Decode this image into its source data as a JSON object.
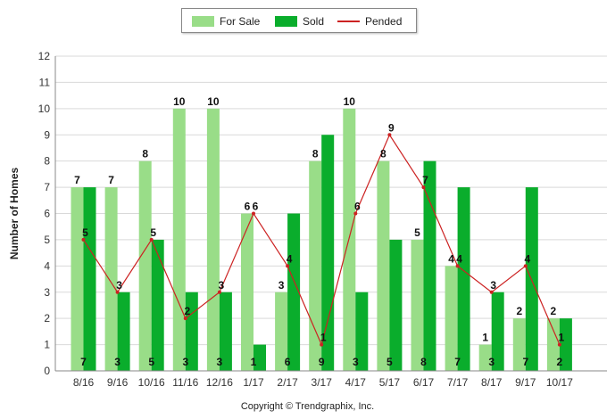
{
  "chart_data": {
    "type": "bar",
    "categories": [
      "8/16",
      "9/16",
      "10/16",
      "11/16",
      "12/16",
      "1/17",
      "2/17",
      "3/17",
      "4/17",
      "5/17",
      "6/17",
      "7/17",
      "8/17",
      "9/17",
      "10/17"
    ],
    "series": [
      {
        "name": "For Sale",
        "type": "bar",
        "color": "#99dd88",
        "values": [
          7,
          7,
          8,
          10,
          10,
          6,
          3,
          8,
          10,
          8,
          5,
          4,
          1,
          2,
          2
        ]
      },
      {
        "name": "Sold",
        "type": "bar",
        "color": "#0aad2c",
        "values": [
          7,
          3,
          5,
          3,
          3,
          1,
          6,
          9,
          3,
          5,
          8,
          7,
          3,
          7,
          2
        ]
      },
      {
        "name": "Pended",
        "type": "line",
        "color": "#cc2222",
        "values": [
          5,
          3,
          5,
          2,
          3,
          6,
          4,
          1,
          6,
          9,
          7,
          4,
          3,
          4,
          1
        ]
      }
    ],
    "ylabel": "Number of Homes",
    "xlabel": "",
    "ylim": [
      0,
      12
    ],
    "yticks": [
      0,
      1,
      2,
      3,
      4,
      5,
      6,
      7,
      8,
      9,
      10,
      11,
      12
    ],
    "grid": true,
    "legend_position": "top"
  },
  "copyright": "Copyright © Trendgraphix, Inc."
}
